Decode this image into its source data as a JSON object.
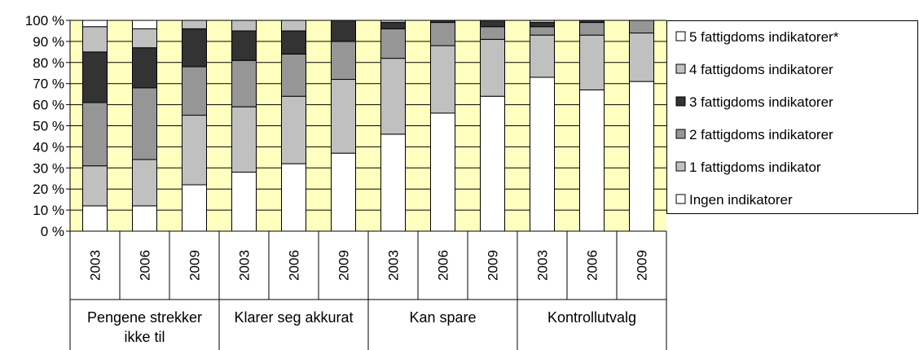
{
  "chart_data": {
    "type": "stacked_bar",
    "categories": [
      "2003",
      "2006",
      "2009",
      "2003",
      "2006",
      "2009",
      "2003",
      "2006",
      "2009",
      "2003",
      "2006",
      "2009"
    ],
    "groups": [
      "Pengene strekker ikke til",
      "Klarer seg akkurat",
      "Kan spare",
      "Kontrollutvalg"
    ],
    "series": [
      {
        "name": "Ingen indikatorer",
        "color": "#ffffff",
        "values": [
          12,
          12,
          22,
          28,
          32,
          37,
          46,
          56,
          64,
          73,
          67,
          71
        ]
      },
      {
        "name": "1 fattigdoms indikator",
        "color": "#c0c0c0",
        "values": [
          19,
          22,
          33,
          31,
          32,
          35,
          36,
          32,
          27,
          20,
          26,
          23
        ]
      },
      {
        "name": "2 fattigdoms indikatorer",
        "color": "#969696",
        "values": [
          30,
          34,
          23,
          22,
          20,
          18,
          14,
          11,
          6,
          4,
          6,
          6
        ]
      },
      {
        "name": "3 fattigdoms indikatorer",
        "color": "#333333",
        "values": [
          24,
          19,
          18,
          14,
          11,
          10,
          3,
          1,
          3,
          2,
          1,
          0
        ]
      },
      {
        "name": "4 fattigdoms indikatorer",
        "color": "#c0c0c0",
        "values": [
          12,
          9,
          4,
          5,
          5,
          0,
          1,
          0,
          0,
          1,
          0,
          0
        ]
      },
      {
        "name": "5 fattigdoms indikatorer*",
        "color": "#ffffff",
        "values": [
          3,
          4,
          0,
          0,
          0,
          0,
          0,
          0,
          0,
          0,
          0,
          0
        ]
      }
    ],
    "ylim": [
      0,
      100
    ],
    "yticks": [
      {
        "value": 0,
        "label": "0 %"
      },
      {
        "value": 10,
        "label": "10 %"
      },
      {
        "value": 20,
        "label": "20 %"
      },
      {
        "value": 30,
        "label": "30 %"
      },
      {
        "value": 40,
        "label": "40 %"
      },
      {
        "value": 50,
        "label": "50 %"
      },
      {
        "value": 60,
        "label": "60 %"
      },
      {
        "value": 70,
        "label": "70 %"
      },
      {
        "value": 80,
        "label": "80 %"
      },
      {
        "value": 90,
        "label": "90 %"
      },
      {
        "value": 100,
        "label": "100 %"
      }
    ],
    "grid": true,
    "plot_background": "#ffffc0",
    "legend": "right"
  }
}
